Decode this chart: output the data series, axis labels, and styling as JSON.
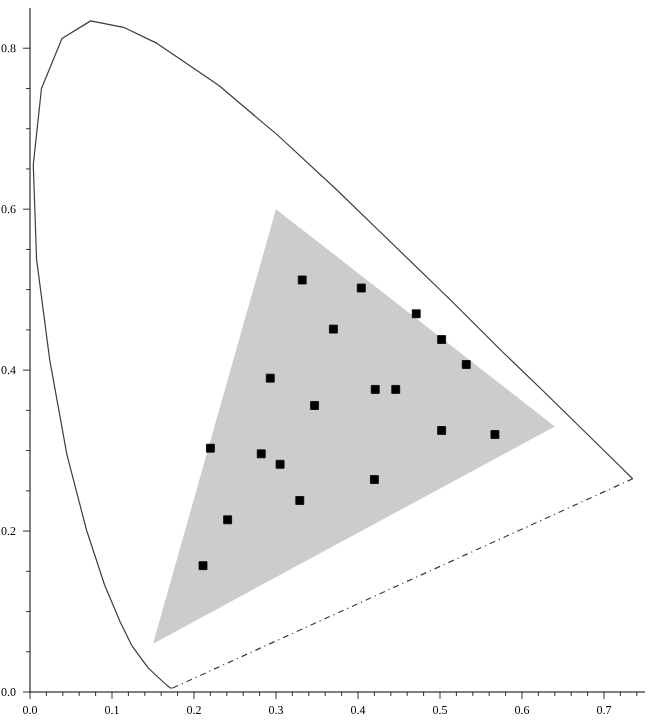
{
  "chart_data": {
    "type": "scatter",
    "xlim": [
      0,
      0.75
    ],
    "ylim": [
      0,
      0.85
    ],
    "xticks": [
      {
        "value": 0,
        "label": "0.0"
      },
      {
        "value": 0.02,
        "label": null
      },
      {
        "value": 0.04,
        "label": null
      },
      {
        "value": 0.06,
        "label": null
      },
      {
        "value": 0.08,
        "label": null
      },
      0.1,
      {
        "value": 0.12,
        "label": null
      },
      {
        "value": 0.14,
        "label": null
      },
      {
        "value": 0.16,
        "label": null
      },
      {
        "value": 0.18,
        "label": null
      },
      0.2,
      {
        "value": 0.22,
        "label": null
      },
      {
        "value": 0.24,
        "label": null
      },
      {
        "value": 0.26,
        "label": null
      },
      {
        "value": 0.28,
        "label": null
      },
      0.3,
      {
        "value": 0.32,
        "label": null
      },
      {
        "value": 0.34,
        "label": null
      },
      {
        "value": 0.36,
        "label": null
      },
      {
        "value": 0.38,
        "label": null
      },
      0.4,
      {
        "value": 0.42,
        "label": null
      },
      {
        "value": 0.44,
        "label": null
      },
      {
        "value": 0.46,
        "label": null
      },
      {
        "value": 0.48,
        "label": null
      },
      0.5,
      {
        "value": 0.52,
        "label": null
      },
      {
        "value": 0.54,
        "label": null
      },
      {
        "value": 0.56,
        "label": null
      },
      {
        "value": 0.58,
        "label": null
      },
      0.6,
      {
        "value": 0.62,
        "label": null
      },
      {
        "value": 0.64,
        "label": null
      },
      {
        "value": 0.66,
        "label": null
      },
      {
        "value": 0.68,
        "label": null
      },
      0.7,
      {
        "value": 0.72,
        "label": null
      },
      {
        "value": 0.74,
        "label": null
      }
    ],
    "yticks": [
      {
        "value": 0,
        "label": "0.0"
      },
      {
        "value": 0.05,
        "label": null
      },
      {
        "value": 0.1,
        "label": null
      },
      {
        "value": 0.15,
        "label": null
      },
      0.2,
      {
        "value": 0.25,
        "label": null
      },
      {
        "value": 0.3,
        "label": null
      },
      {
        "value": 0.35,
        "label": null
      },
      0.4,
      {
        "value": 0.45,
        "label": null
      },
      {
        "value": 0.5,
        "label": null
      },
      {
        "value": 0.55,
        "label": null
      },
      0.6,
      {
        "value": 0.65,
        "label": null
      },
      {
        "value": 0.7,
        "label": null
      },
      {
        "value": 0.75,
        "label": null
      },
      0.8
    ],
    "grid": false,
    "series": [
      {
        "type": "area",
        "color": "#cccccc",
        "x": [
          0.64,
          0.3,
          0.15
        ],
        "values": [
          0.33,
          0.6,
          0.06
        ]
      },
      {
        "type": "line",
        "color": "#3c3c3c",
        "line_style": "solid",
        "x": [
          0.174,
          0.171,
          0.164,
          0.144,
          0.124,
          0.11,
          0.091,
          0.069,
          0.045,
          0.024,
          0.008,
          0.004,
          0.014,
          0.039,
          0.074,
          0.114,
          0.155,
          0.23,
          0.302,
          0.373,
          0.444,
          0.513,
          0.575,
          0.627,
          0.692,
          0.719,
          0.735
        ],
        "values": [
          0.005,
          0.005,
          0.011,
          0.03,
          0.058,
          0.087,
          0.133,
          0.201,
          0.295,
          0.413,
          0.538,
          0.655,
          0.75,
          0.812,
          0.834,
          0.826,
          0.806,
          0.754,
          0.692,
          0.625,
          0.555,
          0.487,
          0.424,
          0.373,
          0.308,
          0.281,
          0.265
        ]
      },
      {
        "type": "line",
        "color": "#3c3c3c",
        "line_style": "dashed",
        "x": [
          0.174,
          0.735
        ],
        "values": [
          0.005,
          0.265
        ]
      },
      {
        "color": "#000000",
        "marker": "square",
        "x": [
          0.332,
          0.404,
          0.471,
          0.37,
          0.502,
          0.532,
          0.293,
          0.421,
          0.446,
          0.347,
          0.502,
          0.567,
          0.22,
          0.282,
          0.305,
          0.42,
          0.329,
          0.241,
          0.211
        ],
        "values": [
          0.512,
          0.502,
          0.47,
          0.451,
          0.438,
          0.407,
          0.39,
          0.376,
          0.376,
          0.356,
          0.325,
          0.32,
          0.303,
          0.296,
          0.283,
          0.264,
          0.238,
          0.214,
          0.157
        ]
      }
    ]
  }
}
